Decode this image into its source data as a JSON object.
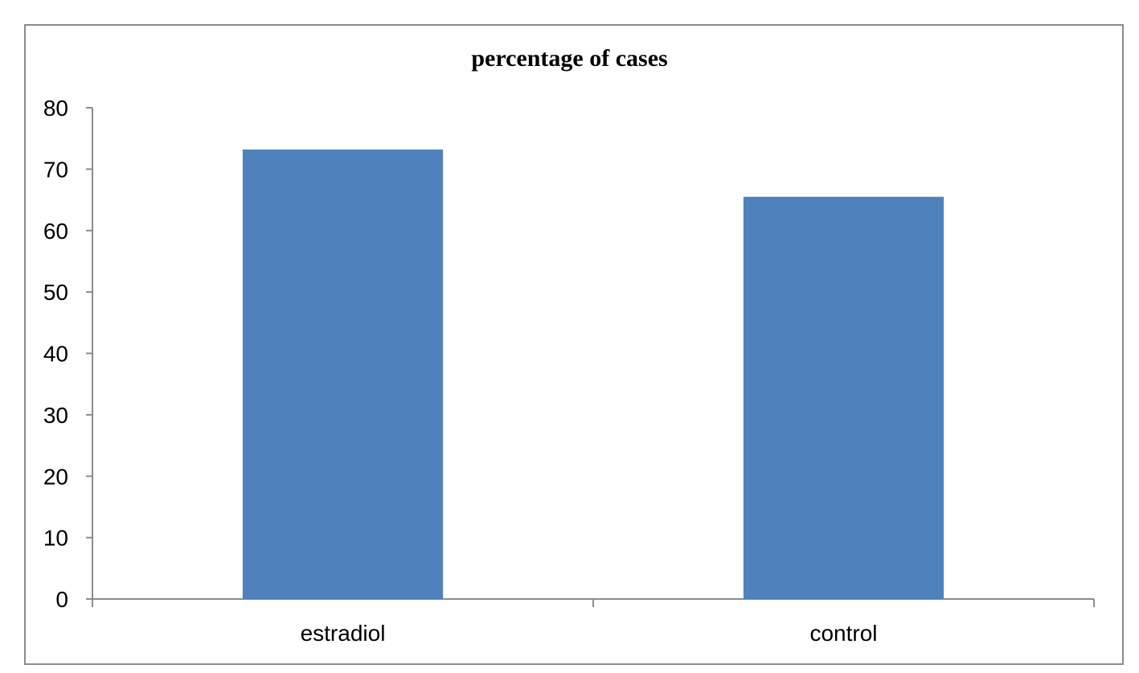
{
  "chart_data": {
    "type": "bar",
    "title": "percentage of cases",
    "categories": [
      "estradiol",
      "control"
    ],
    "values": [
      73.2,
      65.5
    ],
    "ylim": [
      0,
      80
    ],
    "yticks": [
      0,
      10,
      20,
      30,
      40,
      50,
      60,
      70,
      80
    ],
    "xlabel": "",
    "ylabel": "",
    "grid": false,
    "legend": "none",
    "bar_color": "#4f81bd",
    "axis_color": "#8c8c8c"
  }
}
